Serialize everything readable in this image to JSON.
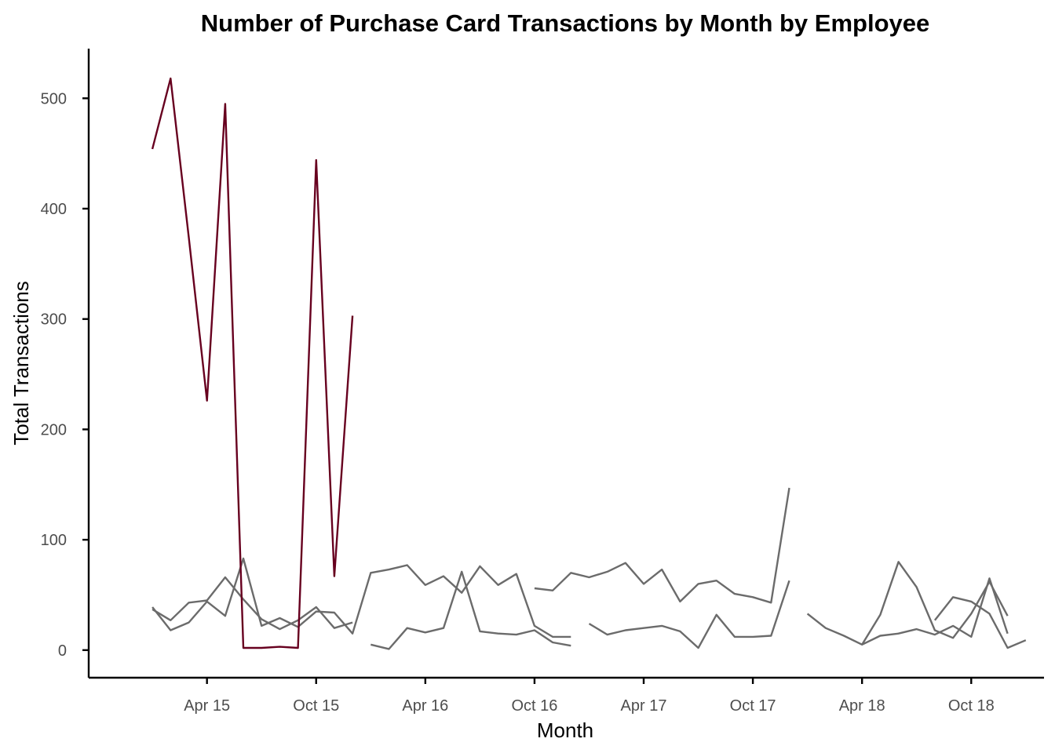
{
  "chart_data": {
    "type": "line",
    "title": "Number of Purchase Card Transactions by Month by Employee",
    "xlabel": "Month",
    "ylabel": "Total Transactions",
    "x_axis": "months (index 0 = Jan 15)",
    "x_ticks": [
      "Apr 15",
      "Oct 15",
      "Apr 16",
      "Oct 16",
      "Apr 17",
      "Oct 17",
      "Apr 18",
      "Oct 18"
    ],
    "y_ticks": [
      0,
      100,
      200,
      300,
      400,
      500
    ],
    "ylim": [
      -25,
      545
    ],
    "xlim": [
      -3.5,
      49
    ],
    "grid": false,
    "legend": "none",
    "highlight_color": "#67001f",
    "default_color": "#6b6b6b",
    "series": [
      {
        "highlight": true,
        "segments": [
          [
            [
              0,
              454
            ],
            [
              1,
              518
            ],
            [
              2,
              374
            ],
            [
              3,
              226
            ],
            [
              4,
              495
            ],
            [
              5,
              2
            ],
            [
              6,
              2
            ],
            [
              7,
              3
            ],
            [
              8,
              2
            ],
            [
              9,
              444
            ],
            [
              10,
              67
            ],
            [
              11,
              303
            ]
          ]
        ]
      },
      {
        "segments": [
          [
            [
              0,
              37
            ],
            [
              1,
              27
            ],
            [
              2,
              43
            ],
            [
              3,
              45
            ],
            [
              4,
              66
            ],
            [
              5,
              46
            ],
            [
              6,
              28
            ],
            [
              7,
              19
            ],
            [
              8,
              27
            ],
            [
              9,
              39
            ],
            [
              10,
              20
            ],
            [
              11,
              25
            ]
          ],
          [
            [
              24,
              24
            ],
            [
              25,
              14
            ],
            [
              26,
              18
            ],
            [
              27,
              20
            ],
            [
              28,
              22
            ],
            [
              29,
              17
            ],
            [
              30,
              2
            ],
            [
              31,
              32
            ],
            [
              32,
              12
            ],
            [
              33,
              12
            ],
            [
              34,
              13
            ],
            [
              35,
              63
            ]
          ]
        ]
      },
      {
        "segments": [
          [
            [
              0,
              39
            ],
            [
              1,
              18
            ],
            [
              2,
              25
            ],
            [
              3,
              44
            ],
            [
              4,
              31
            ],
            [
              5,
              83
            ],
            [
              6,
              22
            ],
            [
              7,
              29
            ],
            [
              8,
              21
            ],
            [
              9,
              35
            ],
            [
              10,
              34
            ],
            [
              11,
              15
            ],
            [
              12,
              70
            ],
            [
              13,
              73
            ],
            [
              14,
              77
            ],
            [
              15,
              59
            ],
            [
              16,
              67
            ],
            [
              17,
              52
            ],
            [
              18,
              76
            ],
            [
              19,
              59
            ],
            [
              20,
              69
            ],
            [
              21,
              22
            ],
            [
              22,
              12
            ],
            [
              23,
              12
            ]
          ],
          [
            [
              36,
              33
            ],
            [
              37,
              20
            ],
            [
              38,
              13
            ],
            [
              39,
              5
            ],
            [
              40,
              13
            ],
            [
              41,
              15
            ],
            [
              42,
              19
            ],
            [
              43,
              14
            ],
            [
              44,
              22
            ],
            [
              45,
              12
            ],
            [
              46,
              65
            ],
            [
              47,
              15
            ]
          ]
        ]
      },
      {
        "segments": [
          [
            [
              12,
              5
            ],
            [
              13,
              1
            ],
            [
              14,
              20
            ],
            [
              15,
              16
            ],
            [
              16,
              20
            ],
            [
              17,
              71
            ],
            [
              18,
              17
            ],
            [
              19,
              15
            ],
            [
              20,
              14
            ],
            [
              21,
              18
            ],
            [
              22,
              7
            ],
            [
              23,
              4
            ]
          ],
          [
            [
              39,
              5
            ],
            [
              40,
              32
            ],
            [
              41,
              80
            ],
            [
              42,
              57
            ],
            [
              43,
              18
            ],
            [
              44,
              11
            ],
            [
              45,
              33
            ],
            [
              46,
              62
            ],
            [
              47,
              31
            ]
          ]
        ]
      },
      {
        "segments": [
          [
            [
              21,
              56
            ],
            [
              22,
              54
            ],
            [
              23,
              70
            ],
            [
              24,
              66
            ],
            [
              25,
              71
            ],
            [
              26,
              79
            ],
            [
              27,
              60
            ],
            [
              28,
              73
            ],
            [
              29,
              44
            ],
            [
              30,
              60
            ],
            [
              31,
              63
            ],
            [
              32,
              51
            ],
            [
              33,
              48
            ],
            [
              34,
              43
            ],
            [
              35,
              147
            ]
          ],
          [
            [
              43,
              27
            ],
            [
              44,
              48
            ],
            [
              45,
              44
            ],
            [
              46,
              33
            ],
            [
              47,
              2
            ],
            [
              48,
              9
            ]
          ]
        ]
      }
    ]
  }
}
